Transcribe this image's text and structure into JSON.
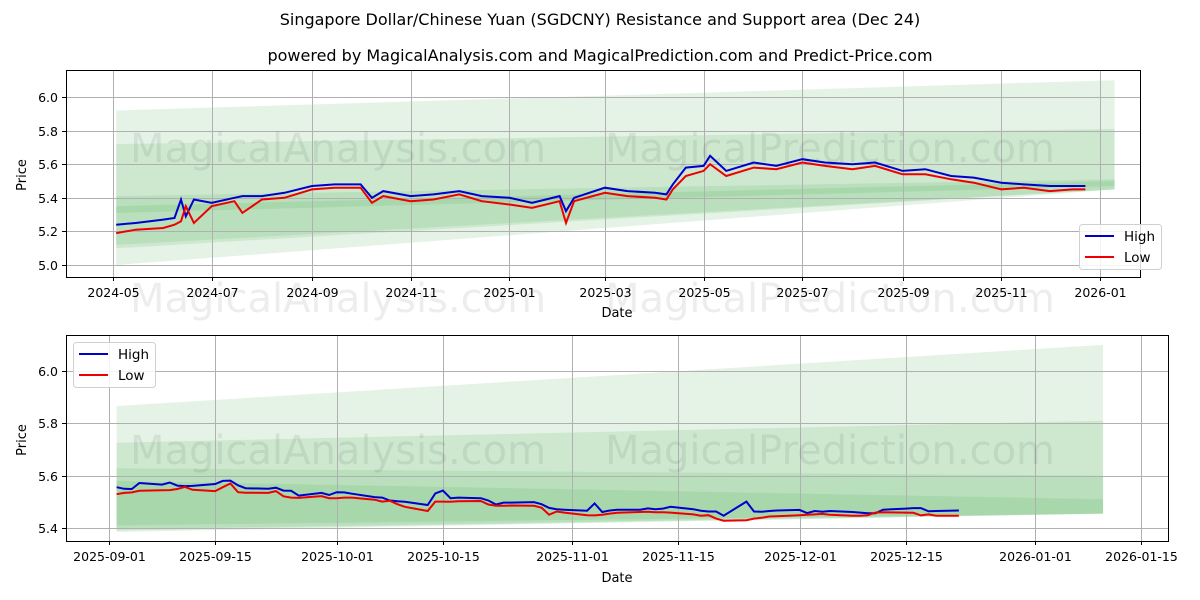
{
  "header": {
    "title": "Singapore Dollar/Chinese Yuan (SGDCNY) Resistance and Support area (Dec 24)",
    "subtitle": "powered by MagicalAnalysis.com and MagicalPrediction.com and Predict-Price.com"
  },
  "watermarks": [
    "MagicalAnalysis.com",
    "MagicalPrediction.com"
  ],
  "colors": {
    "high": "#0000cc",
    "low": "#ee0000",
    "band": "#4caf50",
    "grid": "#b0b0b0"
  },
  "legend": {
    "high": "High",
    "low": "Low"
  },
  "chart_data": [
    {
      "type": "line",
      "title": "Full history",
      "xlabel": "Date",
      "ylabel": "Price",
      "ylim": [
        4.93,
        6.16
      ],
      "grid": true,
      "legend_position": "lower right",
      "x_ticks": [
        "2024-05",
        "2024-07",
        "2024-09",
        "2024-11",
        "2025-01",
        "2025-03",
        "2025-05",
        "2025-07",
        "2025-09",
        "2025-11",
        "2026-01"
      ],
      "y_ticks": [
        "5.0",
        "5.2",
        "5.4",
        "5.6",
        "5.8",
        "6.0"
      ],
      "x": [
        "2024-05-03",
        "2024-05-15",
        "2024-06-01",
        "2024-06-08",
        "2024-06-12",
        "2024-06-15",
        "2024-06-20",
        "2024-07-01",
        "2024-07-15",
        "2024-07-20",
        "2024-08-01",
        "2024-08-15",
        "2024-09-01",
        "2024-09-15",
        "2024-10-01",
        "2024-10-08",
        "2024-10-15",
        "2024-11-01",
        "2024-11-15",
        "2024-12-01",
        "2024-12-15",
        "2025-01-01",
        "2025-01-15",
        "2025-02-01",
        "2025-02-05",
        "2025-02-10",
        "2025-03-01",
        "2025-03-15",
        "2025-04-01",
        "2025-04-08",
        "2025-04-12",
        "2025-04-20",
        "2025-05-01",
        "2025-05-05",
        "2025-05-15",
        "2025-06-01",
        "2025-06-15",
        "2025-07-01",
        "2025-07-15",
        "2025-08-01",
        "2025-08-15",
        "2025-09-01",
        "2025-09-15",
        "2025-10-01",
        "2025-10-15",
        "2025-11-01",
        "2025-11-15",
        "2025-12-01",
        "2025-12-15",
        "2025-12-23"
      ],
      "series": [
        {
          "name": "High",
          "values": [
            5.24,
            5.25,
            5.27,
            5.28,
            5.39,
            5.29,
            5.39,
            5.37,
            5.4,
            5.41,
            5.41,
            5.43,
            5.47,
            5.48,
            5.48,
            5.4,
            5.44,
            5.41,
            5.42,
            5.44,
            5.41,
            5.4,
            5.37,
            5.41,
            5.32,
            5.4,
            5.46,
            5.44,
            5.43,
            5.42,
            5.48,
            5.58,
            5.59,
            5.65,
            5.56,
            5.61,
            5.59,
            5.63,
            5.61,
            5.6,
            5.61,
            5.56,
            5.57,
            5.53,
            5.52,
            5.49,
            5.48,
            5.47,
            5.47,
            5.47
          ]
        },
        {
          "name": "Low",
          "values": [
            5.19,
            5.21,
            5.22,
            5.24,
            5.26,
            5.35,
            5.25,
            5.35,
            5.38,
            5.31,
            5.39,
            5.4,
            5.45,
            5.46,
            5.46,
            5.37,
            5.41,
            5.38,
            5.39,
            5.42,
            5.38,
            5.36,
            5.34,
            5.38,
            5.25,
            5.38,
            5.43,
            5.41,
            5.4,
            5.39,
            5.45,
            5.53,
            5.56,
            5.6,
            5.53,
            5.58,
            5.57,
            5.61,
            5.59,
            5.57,
            5.59,
            5.54,
            5.54,
            5.51,
            5.49,
            5.45,
            5.46,
            5.44,
            5.45,
            5.45
          ]
        }
      ],
      "bands": [
        {
          "name": "outer",
          "x_start": "2024-05-03",
          "x_end": "2026-01-10",
          "start": [
            5.0,
            5.92
          ],
          "end": [
            5.45,
            6.1
          ]
        },
        {
          "name": "middle",
          "x_start": "2024-05-03",
          "x_end": "2026-01-10",
          "start": [
            5.1,
            5.72
          ],
          "end": [
            5.45,
            5.81
          ]
        },
        {
          "name": "inner",
          "x_start": "2024-05-03",
          "x_end": "2026-01-10",
          "start": [
            5.12,
            5.41
          ],
          "end": [
            5.45,
            5.51
          ]
        },
        {
          "name": "core",
          "x_start": "2024-05-03",
          "x_end": "2026-01-10",
          "start": [
            5.31,
            5.35
          ],
          "end": [
            5.47,
            5.5
          ]
        }
      ]
    },
    {
      "type": "line",
      "title": "Recent detail",
      "xlabel": "Date",
      "ylabel": "Price",
      "ylim": [
        5.35,
        6.13
      ],
      "grid": true,
      "legend_position": "upper left",
      "x_ticks": [
        "2025-09-01",
        "2025-09-15",
        "2025-10-01",
        "2025-10-15",
        "2025-11-01",
        "2025-11-15",
        "2025-12-01",
        "2025-12-15",
        "2026-01-01",
        "2026-01-15"
      ],
      "y_ticks": [
        "5.4",
        "5.6",
        "5.8",
        "6.0"
      ],
      "x": [
        "2025-09-02",
        "2025-09-03",
        "2025-09-04",
        "2025-09-05",
        "2025-09-08",
        "2025-09-09",
        "2025-09-10",
        "2025-09-11",
        "2025-09-12",
        "2025-09-15",
        "2025-09-16",
        "2025-09-17",
        "2025-09-18",
        "2025-09-19",
        "2025-09-22",
        "2025-09-23",
        "2025-09-24",
        "2025-09-25",
        "2025-09-26",
        "2025-09-29",
        "2025-09-30",
        "2025-10-01",
        "2025-10-02",
        "2025-10-03",
        "2025-10-06",
        "2025-10-07",
        "2025-10-08",
        "2025-10-09",
        "2025-10-10",
        "2025-10-13",
        "2025-10-14",
        "2025-10-15",
        "2025-10-16",
        "2025-10-17",
        "2025-10-20",
        "2025-10-21",
        "2025-10-22",
        "2025-10-23",
        "2025-10-24",
        "2025-10-27",
        "2025-10-28",
        "2025-10-29",
        "2025-10-30",
        "2025-10-31",
        "2025-11-03",
        "2025-11-04",
        "2025-11-05",
        "2025-11-06",
        "2025-11-07",
        "2025-11-10",
        "2025-11-11",
        "2025-11-12",
        "2025-11-13",
        "2025-11-14",
        "2025-11-17",
        "2025-11-18",
        "2025-11-19",
        "2025-11-20",
        "2025-11-21",
        "2025-11-24",
        "2025-11-25",
        "2025-11-26",
        "2025-11-27",
        "2025-11-28",
        "2025-12-01",
        "2025-12-02",
        "2025-12-03",
        "2025-12-04",
        "2025-12-05",
        "2025-12-08",
        "2025-12-09",
        "2025-12-10",
        "2025-12-11",
        "2025-12-12",
        "2025-12-15",
        "2025-12-16",
        "2025-12-17",
        "2025-12-18",
        "2025-12-19",
        "2025-12-22"
      ],
      "series": [
        {
          "name": "High",
          "values": [
            5.556,
            5.55,
            5.549,
            5.572,
            5.566,
            5.574,
            5.562,
            5.56,
            5.561,
            5.568,
            5.58,
            5.581,
            5.563,
            5.552,
            5.55,
            5.554,
            5.543,
            5.542,
            5.524,
            5.534,
            5.526,
            5.537,
            5.536,
            5.531,
            5.518,
            5.516,
            5.505,
            5.502,
            5.5,
            5.488,
            5.532,
            5.543,
            5.514,
            5.516,
            5.514,
            5.505,
            5.49,
            5.497,
            5.497,
            5.499,
            5.491,
            5.477,
            5.472,
            5.47,
            5.466,
            5.494,
            5.461,
            5.467,
            5.47,
            5.47,
            5.475,
            5.472,
            5.474,
            5.481,
            5.472,
            5.466,
            5.463,
            5.463,
            5.447,
            5.501,
            5.463,
            5.462,
            5.465,
            5.467,
            5.469,
            5.457,
            5.465,
            5.462,
            5.465,
            5.461,
            5.459,
            5.456,
            5.456,
            5.47,
            5.474,
            5.476,
            5.476,
            5.464,
            5.465,
            5.467
          ]
        },
        {
          "name": "Low",
          "values": [
            5.529,
            5.534,
            5.536,
            5.542,
            5.544,
            5.545,
            5.549,
            5.557,
            5.546,
            5.541,
            5.556,
            5.57,
            5.537,
            5.535,
            5.534,
            5.541,
            5.521,
            5.516,
            5.515,
            5.522,
            5.514,
            5.514,
            5.516,
            5.516,
            5.508,
            5.501,
            5.504,
            5.491,
            5.481,
            5.465,
            5.501,
            5.501,
            5.5,
            5.502,
            5.503,
            5.49,
            5.485,
            5.485,
            5.486,
            5.485,
            5.478,
            5.451,
            5.463,
            5.459,
            5.449,
            5.448,
            5.451,
            5.455,
            5.458,
            5.461,
            5.462,
            5.46,
            5.46,
            5.459,
            5.452,
            5.447,
            5.449,
            5.436,
            5.428,
            5.43,
            5.436,
            5.439,
            5.444,
            5.445,
            5.449,
            5.451,
            5.452,
            5.454,
            5.451,
            5.447,
            5.447,
            5.449,
            5.459,
            5.46,
            5.459,
            5.458,
            5.448,
            5.452,
            5.447,
            5.447
          ]
        }
      ],
      "bands": [
        {
          "name": "outer",
          "x_start": "2025-09-02",
          "x_end": "2026-01-10",
          "start": [
            5.385,
            5.866
          ],
          "end": [
            5.455,
            6.1
          ]
        },
        {
          "name": "middle",
          "x_start": "2025-09-02",
          "x_end": "2026-01-10",
          "start": [
            5.39,
            5.726
          ],
          "end": [
            5.455,
            5.81
          ]
        },
        {
          "name": "inner",
          "x_start": "2025-09-02",
          "x_end": "2026-01-10",
          "start": [
            5.395,
            5.628
          ],
          "end": [
            5.455,
            5.6
          ]
        },
        {
          "name": "core",
          "x_start": "2025-09-02",
          "x_end": "2026-01-10",
          "start": [
            5.41,
            5.58
          ],
          "end": [
            5.455,
            5.51
          ]
        }
      ]
    }
  ]
}
